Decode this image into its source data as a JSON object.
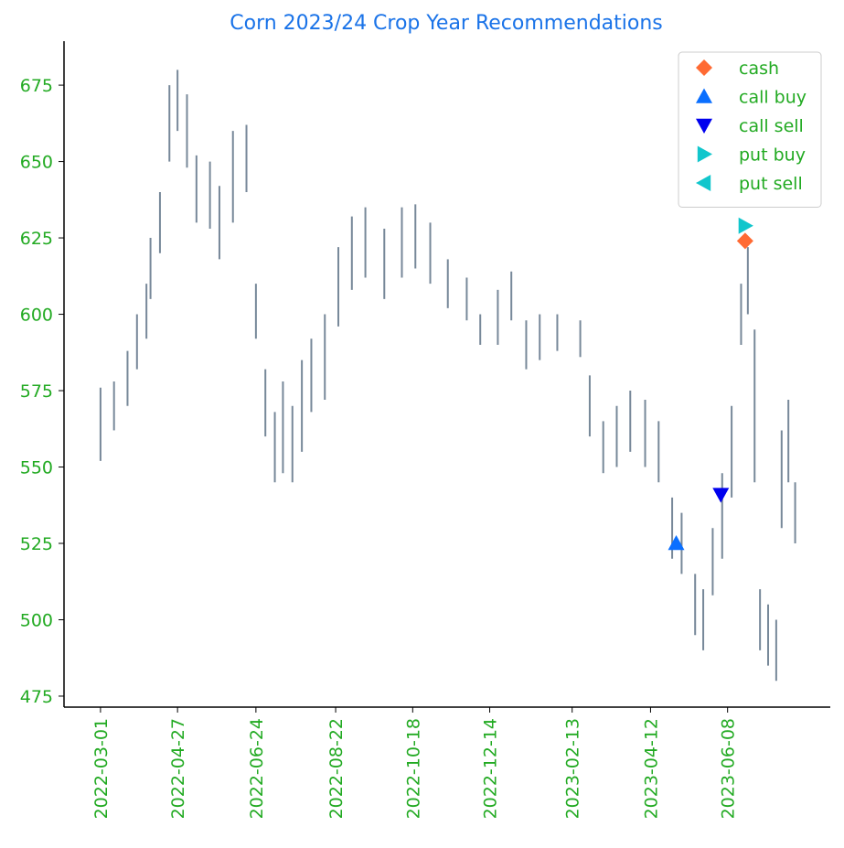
{
  "chart_data": {
    "type": "range-bar",
    "title": "Corn 2023/24 Crop Year Recommendations",
    "x": [
      "2022-03-01",
      "2022-03-11",
      "2022-03-21",
      "2022-03-28",
      "2022-04-04",
      "2022-04-07",
      "2022-04-14",
      "2022-04-21",
      "2022-04-27",
      "2022-05-04",
      "2022-05-11",
      "2022-05-21",
      "2022-05-28",
      "2022-06-07",
      "2022-06-17",
      "2022-06-24",
      "2022-07-01",
      "2022-07-08",
      "2022-07-14",
      "2022-07-21",
      "2022-07-28",
      "2022-08-04",
      "2022-08-14",
      "2022-08-24",
      "2022-09-03",
      "2022-09-13",
      "2022-09-27",
      "2022-10-10",
      "2022-10-20",
      "2022-10-31",
      "2022-11-13",
      "2022-11-27",
      "2022-12-07",
      "2022-12-20",
      "2022-12-30",
      "2023-01-10",
      "2023-01-20",
      "2023-02-02",
      "2023-02-19",
      "2023-02-26",
      "2023-03-08",
      "2023-03-18",
      "2023-03-28",
      "2023-04-08",
      "2023-04-18",
      "2023-04-28",
      "2023-05-05",
      "2023-05-15",
      "2023-05-21",
      "2023-05-28",
      "2023-06-04",
      "2023-06-11",
      "2023-06-18",
      "2023-06-23",
      "2023-06-28",
      "2023-07-02",
      "2023-07-08",
      "2023-07-14",
      "2023-07-18",
      "2023-07-23",
      "2023-07-28"
    ],
    "low": [
      552,
      562,
      570,
      582,
      592,
      605,
      620,
      650,
      660,
      648,
      630,
      628,
      618,
      630,
      640,
      592,
      560,
      545,
      548,
      545,
      555,
      568,
      572,
      596,
      608,
      612,
      605,
      612,
      615,
      610,
      602,
      598,
      590,
      590,
      598,
      582,
      585,
      588,
      586,
      560,
      548,
      550,
      555,
      550,
      545,
      520,
      515,
      495,
      490,
      508,
      520,
      540,
      590,
      600,
      545,
      490,
      485,
      480,
      530,
      545,
      525
    ],
    "high": [
      576,
      578,
      588,
      600,
      610,
      625,
      640,
      675,
      680,
      672,
      652,
      650,
      642,
      660,
      662,
      610,
      582,
      568,
      578,
      570,
      585,
      592,
      600,
      622,
      632,
      635,
      628,
      635,
      636,
      630,
      618,
      612,
      600,
      608,
      614,
      598,
      600,
      600,
      598,
      580,
      565,
      570,
      575,
      572,
      565,
      540,
      535,
      515,
      510,
      530,
      548,
      570,
      610,
      622,
      595,
      510,
      505,
      500,
      562,
      572,
      545
    ],
    "color": "#778899",
    "markers": [
      {
        "name": "cash",
        "color": "#ff6a33",
        "marker": "diamond",
        "x": "2023-06-21",
        "y": 624
      },
      {
        "name": "call buy",
        "color": "#0a6fff",
        "marker": "triangle-up",
        "x": "2023-05-01",
        "y": 525
      },
      {
        "name": "call sell",
        "color": "#0000ee",
        "marker": "triangle-down",
        "x": "2023-06-03",
        "y": 541
      },
      {
        "name": "put buy",
        "color": "#11c6cc",
        "marker": "triangle-right",
        "x": "2023-06-21",
        "y": 629
      },
      {
        "name": "put sell",
        "color": "#11c6cc",
        "marker": "triangle-left"
      }
    ],
    "xlim": [
      "2022-02-02",
      "2023-08-23"
    ],
    "xticks": [
      "2022-03-01",
      "2022-04-27",
      "2022-06-24",
      "2022-08-22",
      "2022-10-18",
      "2022-12-14",
      "2023-02-13",
      "2023-04-12",
      "2023-06-08"
    ],
    "ylim": [
      471.4,
      689.4
    ],
    "yticks": [
      475,
      500,
      525,
      550,
      575,
      600,
      625,
      650,
      675
    ],
    "legend": "upper right"
  }
}
